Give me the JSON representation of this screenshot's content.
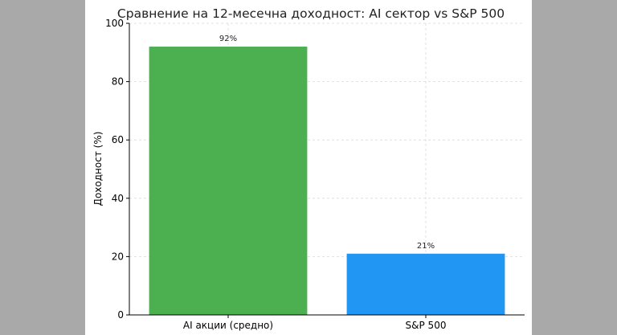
{
  "chart_data": {
    "type": "bar",
    "title": "Сравнение на 12-месечна доходност: AI сектор vs S&P 500",
    "xlabel": "",
    "ylabel": "Доходност (%)",
    "categories": [
      "AI акции (средно)",
      "S&P 500"
    ],
    "values": [
      92,
      21
    ],
    "value_labels": [
      "92%",
      "21%"
    ],
    "bar_colors": [
      "#4caf50",
      "#2196f3"
    ],
    "ylim": [
      0,
      100
    ],
    "yticks": [
      "0",
      "20",
      "40",
      "60",
      "80",
      "100"
    ],
    "grid": true,
    "legend": "none"
  }
}
